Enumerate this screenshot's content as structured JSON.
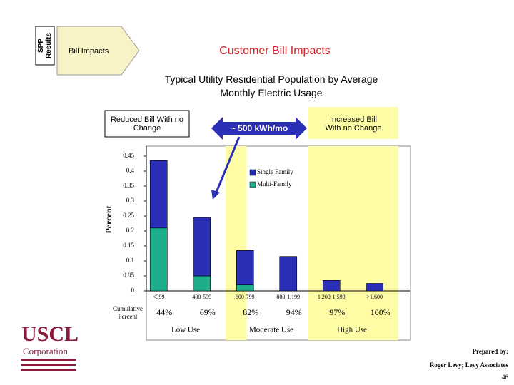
{
  "header": {
    "side_label": "SPP Results",
    "tab": "Bill Impacts",
    "title": "Customer Bill Impacts",
    "subtitle": "Typical Utility Residential Population by Average Monthly Electric Usage"
  },
  "callouts": {
    "left": "Reduced Bill With no Change",
    "center": "~ 500 kWh/mo",
    "right": "Increased Bill With no Change"
  },
  "chart_data": {
    "type": "stacked_bar",
    "y_label": "Percent",
    "categories": [
      "<399",
      "400-599",
      "600-799",
      "800-1,199",
      "1,200-1,599",
      ">1,600"
    ],
    "series": [
      {
        "name": "Multi-Family",
        "color": "#1fae8c",
        "values": [
          0.21,
          0.05,
          0.02,
          0,
          0,
          0
        ]
      },
      {
        "name": "Single Family",
        "color": "#2b2fb8",
        "values": [
          0.225,
          0.195,
          0.115,
          0.115,
          0.035,
          0.025
        ]
      }
    ],
    "ylim": [
      0,
      0.45
    ],
    "yticks": [
      0,
      0.05,
      0.1,
      0.15,
      0.2,
      0.25,
      0.3,
      0.35,
      0.4,
      0.45
    ],
    "cumulative_title": "Cumulative Percent",
    "cumulative_labels": [
      "44%",
      "69%",
      "82%",
      "94%",
      "97%",
      "100%"
    ],
    "groups": [
      "Low Use",
      "Moderate Use",
      "High Use"
    ]
  },
  "footer": {
    "logo": "USCL",
    "logo_sub": "Corporation",
    "prepared": "Prepared by:",
    "author": "Roger Levy; Levy Associates",
    "page": "46"
  }
}
